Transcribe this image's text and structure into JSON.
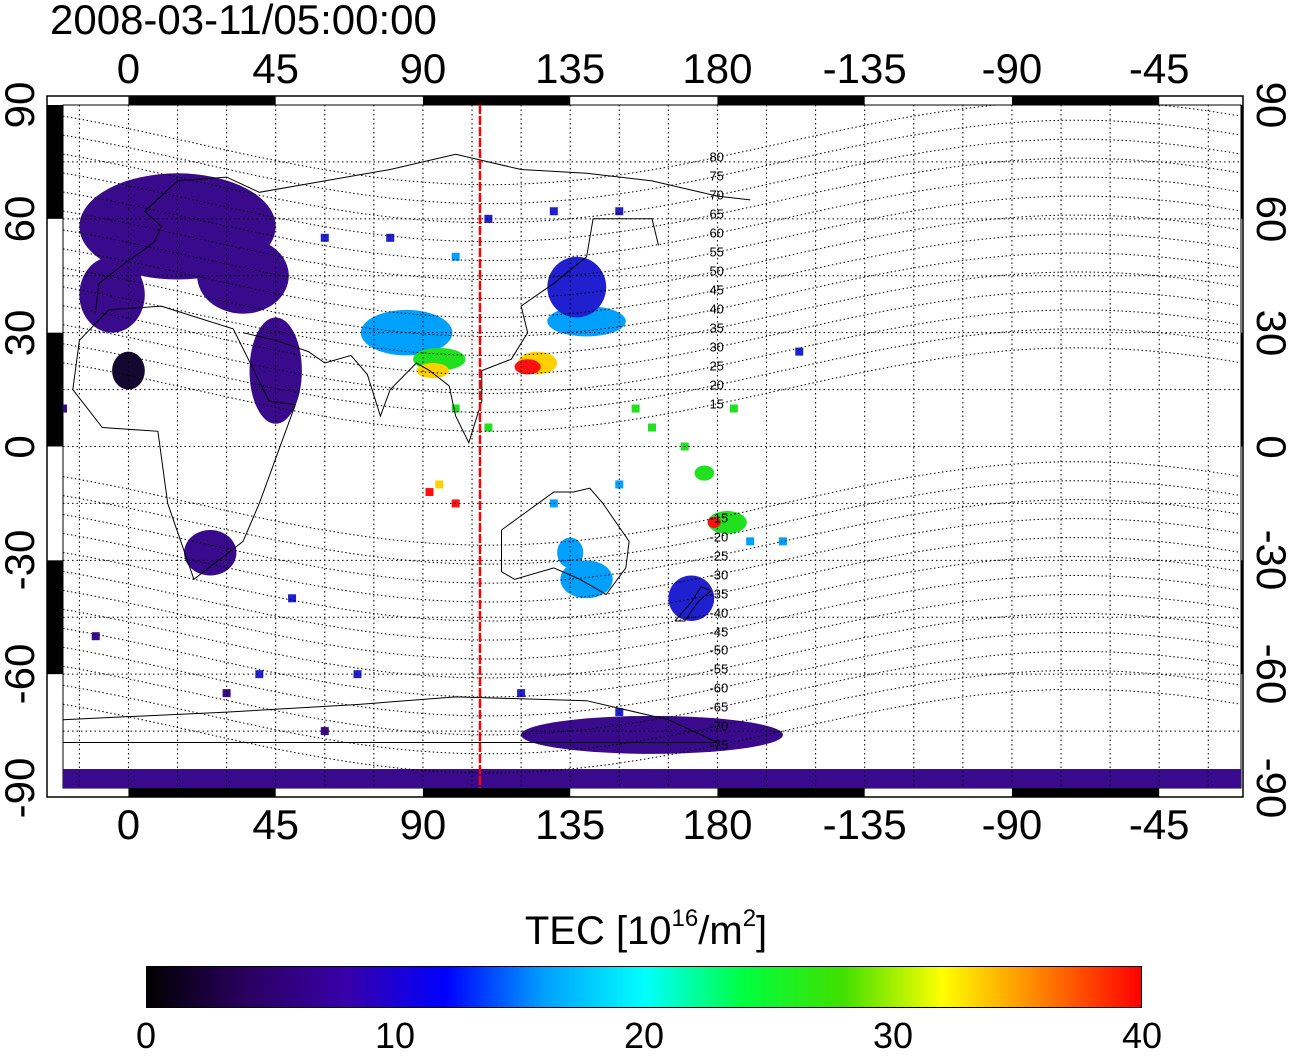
{
  "title": "2008-03-11/05:00:00",
  "map": {
    "top_axis_ticks": [
      "0",
      "45",
      "90",
      "135",
      "180",
      "-135",
      "-90",
      "-45"
    ],
    "bottom_axis_ticks": [
      "0",
      "45",
      "90",
      "135",
      "180",
      "-135",
      "-90",
      "-45"
    ],
    "left_axis_ticks": [
      "90",
      "60",
      "30",
      "0",
      "-30",
      "-60",
      "-90"
    ],
    "right_axis_ticks": [
      "90",
      "60",
      "30",
      "0",
      "-30",
      "-60",
      "-90"
    ],
    "x_range_deg": [
      -20,
      340
    ],
    "y_range_deg": [
      -90,
      90
    ],
    "grid": "dotted",
    "reference_meridian_color": "#ff0000",
    "reference_meridian_lon": 105,
    "contour_labels": [
      "80",
      "75",
      "70",
      "65",
      "60",
      "55",
      "50",
      "45",
      "40",
      "35",
      "30",
      "25",
      "20",
      "15",
      "-15",
      "-20",
      "-25",
      "-30",
      "-35",
      "-40",
      "-45",
      "-50",
      "-55",
      "-60",
      "-65",
      "-70",
      "-75"
    ],
    "tec_patch_colors": {
      "low": "#3a0a8c",
      "low_mid": "#2020d0",
      "mid": "#00a0ff",
      "mid_high": "#20e020",
      "high": "#ffd000",
      "peak": "#ff1010"
    }
  },
  "colorbar": {
    "title_main": "TEC  [10",
    "title_exp": "16",
    "title_unit": "/m",
    "title_sq": "2",
    "title_close": "]",
    "ticks": [
      "0",
      "10",
      "20",
      "30",
      "40"
    ],
    "range": [
      0,
      40
    ],
    "stops": [
      "#000000",
      "#2a0060",
      "#3800a8",
      "#0000ff",
      "#00a0ff",
      "#00ffff",
      "#00ff40",
      "#40e000",
      "#ffff00",
      "#ff8000",
      "#ff0000"
    ]
  }
}
